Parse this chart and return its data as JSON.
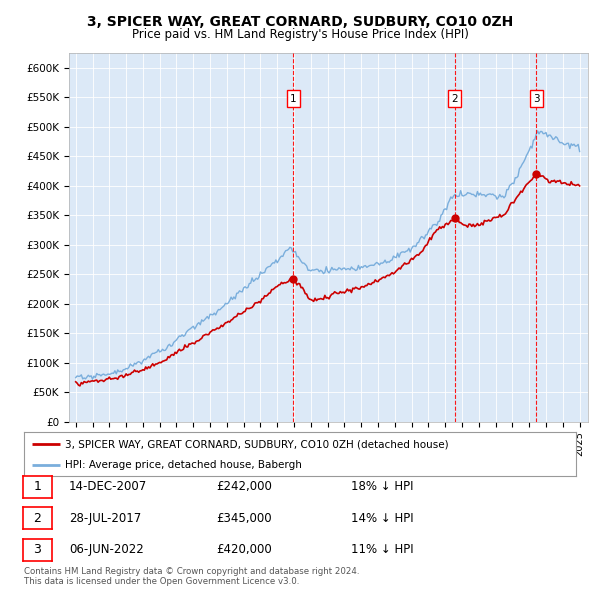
{
  "title": "3, SPICER WAY, GREAT CORNARD, SUDBURY, CO10 0ZH",
  "subtitle": "Price paid vs. HM Land Registry's House Price Index (HPI)",
  "fig_bg": "#ffffff",
  "plot_bg_color": "#dce9f7",
  "hpi_color": "#7aaedc",
  "price_color": "#cc0000",
  "yticks": [
    0,
    50000,
    100000,
    150000,
    200000,
    250000,
    300000,
    350000,
    400000,
    450000,
    500000,
    550000,
    600000
  ],
  "ytick_labels": [
    "£0",
    "£50K",
    "£100K",
    "£150K",
    "£200K",
    "£250K",
    "£300K",
    "£350K",
    "£400K",
    "£450K",
    "£500K",
    "£550K",
    "£600K"
  ],
  "sale_years": [
    2007.958,
    2017.575,
    2022.42
  ],
  "sale_prices": [
    242000,
    345000,
    420000
  ],
  "legend_label_price": "3, SPICER WAY, GREAT CORNARD, SUDBURY, CO10 0ZH (detached house)",
  "legend_label_hpi": "HPI: Average price, detached house, Babergh",
  "table_rows": [
    {
      "num": "1",
      "date": "14-DEC-2007",
      "price": "£242,000",
      "pct": "18% ↓ HPI"
    },
    {
      "num": "2",
      "date": "28-JUL-2017",
      "price": "£345,000",
      "pct": "14% ↓ HPI"
    },
    {
      "num": "3",
      "date": "06-JUN-2022",
      "price": "£420,000",
      "pct": "11% ↓ HPI"
    }
  ],
  "footer1": "Contains HM Land Registry data © Crown copyright and database right 2024.",
  "footer2": "This data is licensed under the Open Government Licence v3.0."
}
